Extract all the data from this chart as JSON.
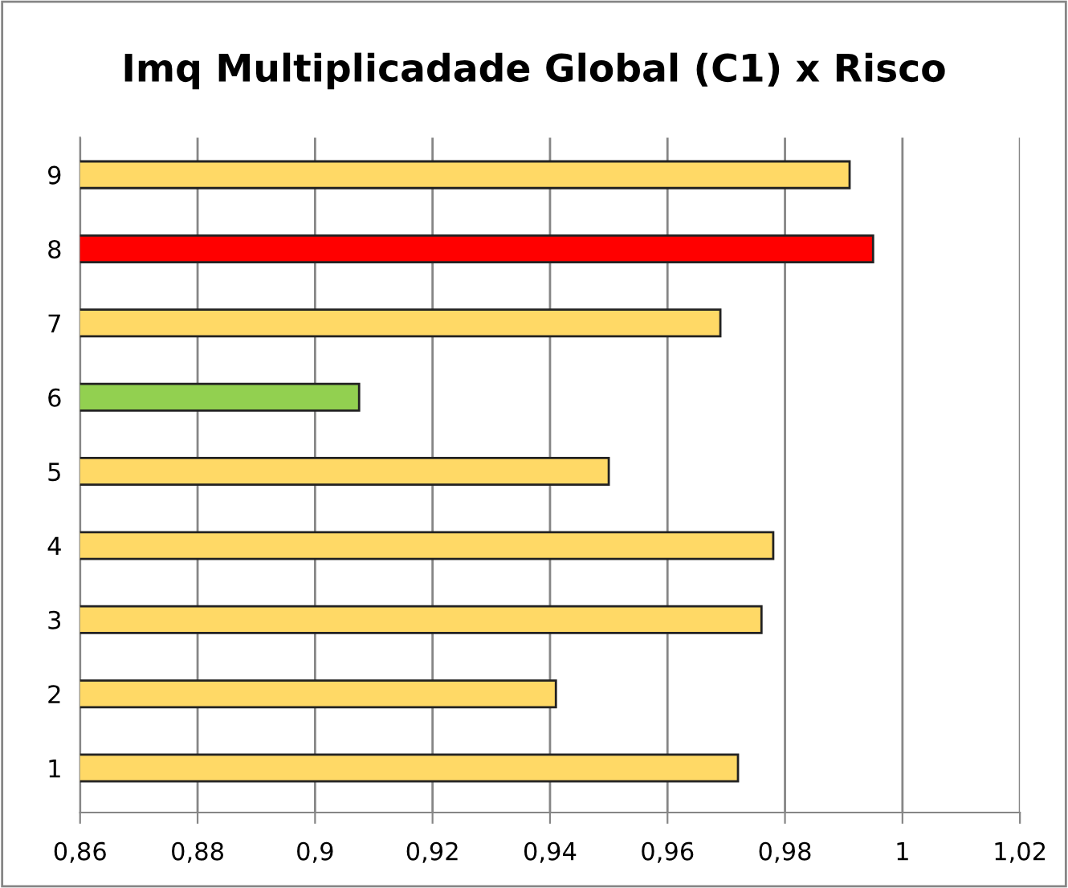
{
  "chart_data": {
    "type": "bar",
    "orientation": "horizontal",
    "title": "Imq Multiplicadade Global (C1) x Risco",
    "categories": [
      "9",
      "8",
      "7",
      "6",
      "5",
      "4",
      "3",
      "2",
      "1"
    ],
    "values": [
      0.991,
      0.995,
      0.969,
      0.9075,
      0.95,
      0.978,
      0.976,
      0.941,
      0.972
    ],
    "colors": [
      "#ffd966",
      "#ff0000",
      "#ffd966",
      "#92d050",
      "#ffd966",
      "#ffd966",
      "#ffd966",
      "#ffd966",
      "#ffd966"
    ],
    "xlim": [
      0.86,
      1.02
    ],
    "xticks": [
      {
        "value": 0.86,
        "label": "0,86"
      },
      {
        "value": 0.88,
        "label": "0,88"
      },
      {
        "value": 0.9,
        "label": "0,9"
      },
      {
        "value": 0.92,
        "label": "0,92"
      },
      {
        "value": 0.94,
        "label": "0,94"
      },
      {
        "value": 0.96,
        "label": "0,96"
      },
      {
        "value": 0.98,
        "label": "0,98"
      },
      {
        "value": 1,
        "label": "1"
      },
      {
        "value": 1.02,
        "label": "1,02"
      }
    ],
    "grid": "x"
  }
}
